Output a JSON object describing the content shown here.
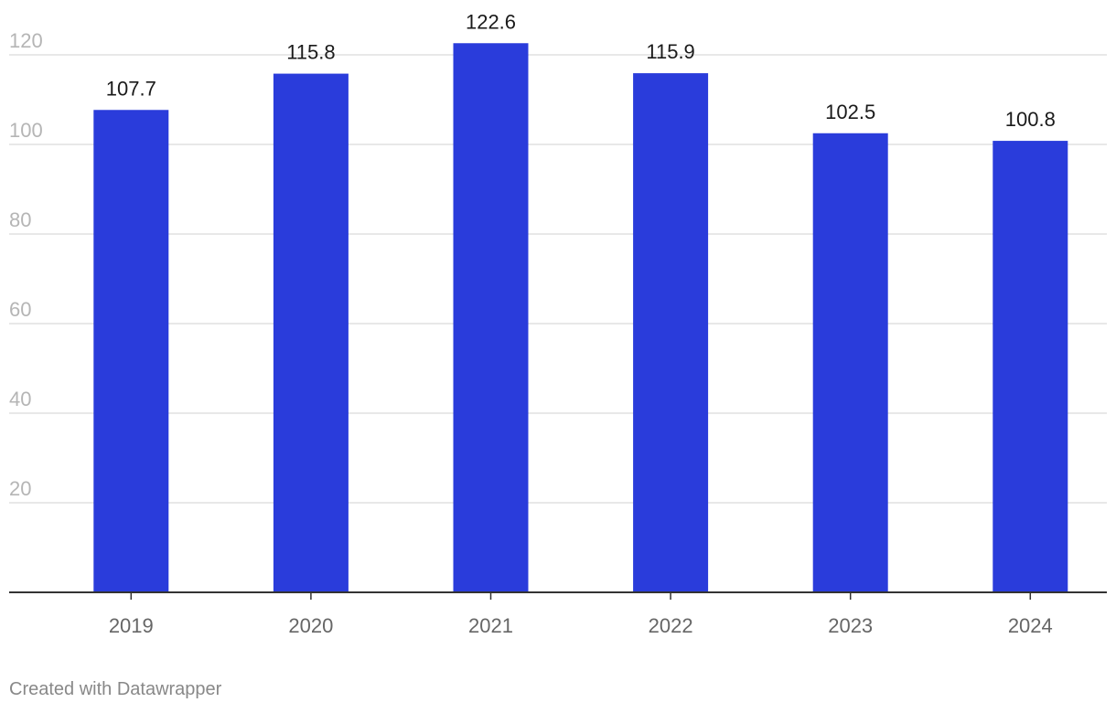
{
  "chart_data": {
    "type": "bar",
    "categories": [
      "2019",
      "2020",
      "2021",
      "2022",
      "2023",
      "2024"
    ],
    "values": [
      107.7,
      115.8,
      122.6,
      115.9,
      102.5,
      100.8
    ],
    "data_labels": [
      "107.7",
      "115.8",
      "122.6",
      "115.9",
      "102.5",
      "100.8"
    ],
    "y_ticks": [
      20,
      40,
      60,
      80,
      100,
      120
    ],
    "ylim": [
      0,
      120
    ],
    "title": "",
    "xlabel": "",
    "ylabel": "",
    "grid": true,
    "bar_color": "#2a3cdb",
    "gridline_color": "#e0e0e0"
  },
  "footer": {
    "credit": "Created with Datawrapper"
  }
}
